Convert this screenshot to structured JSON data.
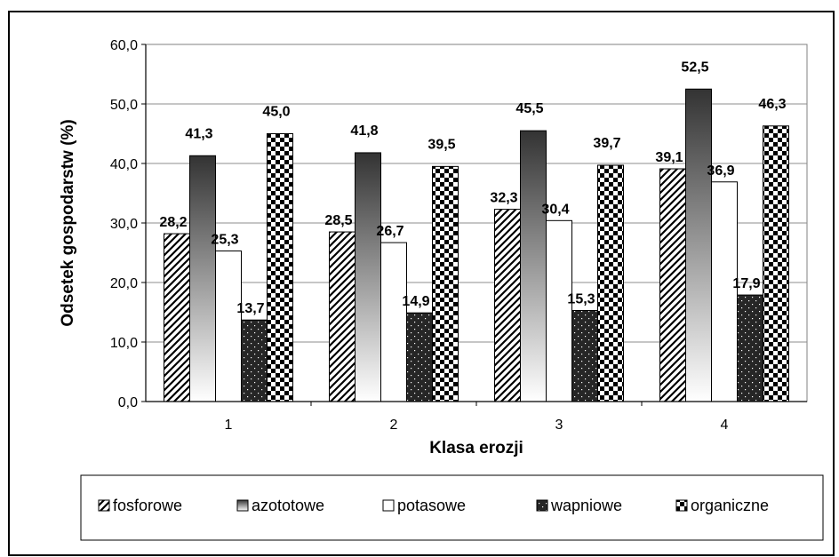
{
  "chart_data": {
    "type": "bar",
    "title": "",
    "xlabel": "Klasa erozji",
    "ylabel": "Odsetek gospodarstw (%)",
    "ylim": [
      0,
      60
    ],
    "yticks": [
      "0,0",
      "10,0",
      "20,0",
      "30,0",
      "40,0",
      "50,0",
      "60,0"
    ],
    "categories": [
      "1",
      "2",
      "3",
      "4"
    ],
    "grid": true,
    "legend_position": "bottom",
    "series": [
      {
        "name": "fosforowe",
        "pattern": "diagonal-hatch",
        "values": [
          28.2,
          28.5,
          32.3,
          39.1
        ],
        "labels": [
          "28,2",
          "28,5",
          "32,3",
          "39,1"
        ]
      },
      {
        "name": "azototowe",
        "pattern": "gradient-dark",
        "values": [
          41.3,
          41.8,
          45.5,
          52.5
        ],
        "labels": [
          "41,3",
          "41,8",
          "45,5",
          "52,5"
        ]
      },
      {
        "name": "potasowe",
        "pattern": "white",
        "values": [
          25.3,
          26.7,
          30.4,
          36.9
        ],
        "labels": [
          "25,3",
          "26,7",
          "30,4",
          "36,9"
        ]
      },
      {
        "name": "wapniowe",
        "pattern": "dotted-dark",
        "values": [
          13.7,
          14.9,
          15.3,
          17.9
        ],
        "labels": [
          "13,7",
          "14,9",
          "15,3",
          "17,9"
        ]
      },
      {
        "name": "organiczne",
        "pattern": "checker",
        "values": [
          45.0,
          39.5,
          39.7,
          46.3
        ],
        "labels": [
          "45,0",
          "39,5",
          "39,7",
          "46,3"
        ]
      }
    ]
  }
}
